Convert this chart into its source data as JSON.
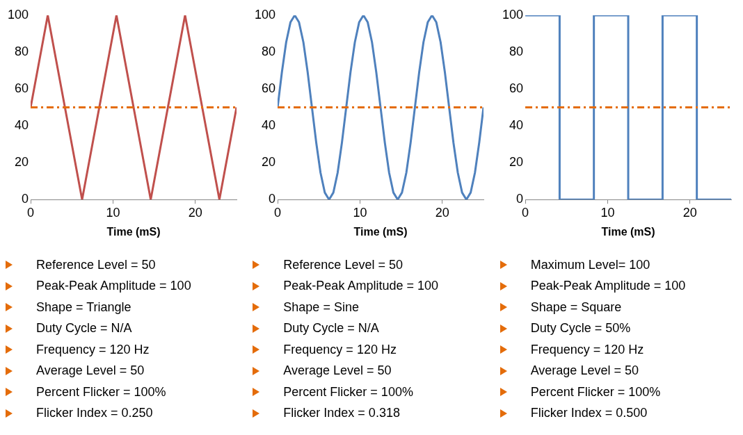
{
  "chart_data": [
    {
      "type": "line",
      "xlabel": "Time (mS)",
      "xlim": [
        0,
        25
      ],
      "xticks": [
        0,
        10,
        20
      ],
      "ylim": [
        0,
        100
      ],
      "yticks": [
        0,
        20,
        40,
        60,
        80,
        100
      ],
      "grid": false,
      "legend": false,
      "marker": "none",
      "series": [
        {
          "color": "#c0504d",
          "x": [
            0,
            2.08,
            6.25,
            10.42,
            14.58,
            18.75,
            22.92,
            25
          ],
          "values": [
            50,
            100,
            0,
            100,
            0,
            100,
            0,
            50
          ]
        }
      ],
      "ref_lines": [
        {
          "axis": "y",
          "value": 50,
          "color": "#e46c0a"
        }
      ],
      "annotations": [
        "Reference Level = 50",
        "Peak-Peak Amplitude = 100",
        "Shape = Triangle",
        "Duty Cycle = N/A",
        "Frequency = 120 Hz",
        "Average Level = 50",
        "Percent Flicker = 100%",
        "Flicker Index = 0.250"
      ]
    },
    {
      "type": "line",
      "xlabel": "Time (mS)",
      "xlim": [
        0,
        25
      ],
      "xticks": [
        0,
        10,
        20
      ],
      "ylim": [
        0,
        100
      ],
      "yticks": [
        0,
        20,
        40,
        60,
        80,
        100
      ],
      "grid": false,
      "legend": false,
      "marker": "none",
      "series": [
        {
          "color": "#4f81bd",
          "x": [
            0,
            0.52,
            1.04,
            1.56,
            2.08,
            2.6,
            3.13,
            3.65,
            4.17,
            4.69,
            5.21,
            5.73,
            6.25,
            6.77,
            7.29,
            7.81,
            8.33,
            8.85,
            9.38,
            9.9,
            10.42,
            10.94,
            11.46,
            11.98,
            12.5,
            13.02,
            13.54,
            14.06,
            14.58,
            15.1,
            15.63,
            16.15,
            16.67,
            17.19,
            17.71,
            18.23,
            18.75,
            19.27,
            19.79,
            20.31,
            20.83,
            21.35,
            21.88,
            22.4,
            22.92,
            23.44,
            23.96,
            24.48,
            25
          ],
          "values": [
            50,
            69.1,
            85.4,
            96.2,
            100,
            96.2,
            85.4,
            69.1,
            50,
            30.9,
            14.6,
            3.8,
            0,
            3.8,
            14.6,
            30.9,
            50,
            69.1,
            85.4,
            96.2,
            100,
            96.2,
            85.4,
            69.1,
            50,
            30.9,
            14.6,
            3.8,
            0,
            3.8,
            14.6,
            30.9,
            50,
            69.1,
            85.4,
            96.2,
            100,
            96.2,
            85.4,
            69.1,
            50,
            30.9,
            14.6,
            3.8,
            0,
            3.8,
            14.6,
            30.9,
            50
          ]
        }
      ],
      "ref_lines": [
        {
          "axis": "y",
          "value": 50,
          "color": "#e46c0a"
        }
      ],
      "annotations": [
        "Reference Level = 50",
        "Peak-Peak Amplitude = 100",
        "Shape = Sine",
        "Duty Cycle = N/A",
        "Frequency = 120 Hz",
        "Average Level = 50",
        "Percent Flicker = 100%",
        "Flicker Index = 0.318"
      ]
    },
    {
      "type": "line",
      "xlabel": "Time (mS)",
      "xlim": [
        0,
        25
      ],
      "xticks": [
        0,
        10,
        20
      ],
      "ylim": [
        0,
        100
      ],
      "yticks": [
        0,
        20,
        40,
        60,
        80,
        100
      ],
      "grid": false,
      "legend": false,
      "marker": "none",
      "series": [
        {
          "color": "#4f81bd",
          "x": [
            0,
            4.17,
            4.17,
            8.33,
            8.33,
            12.5,
            12.5,
            16.67,
            16.67,
            20.83,
            20.83,
            25
          ],
          "values": [
            100,
            100,
            0,
            0,
            100,
            100,
            0,
            0,
            100,
            100,
            0,
            0
          ]
        }
      ],
      "ref_lines": [
        {
          "axis": "y",
          "value": 50,
          "color": "#e46c0a"
        }
      ],
      "annotations": [
        "Maximum Level= 100",
        "Peak-Peak Amplitude = 100",
        "Shape = Square",
        "Duty Cycle = 50%",
        "Frequency = 120 Hz",
        "Average Level = 50",
        "Percent Flicker = 100%",
        "Flicker Index = 0.500"
      ]
    }
  ]
}
